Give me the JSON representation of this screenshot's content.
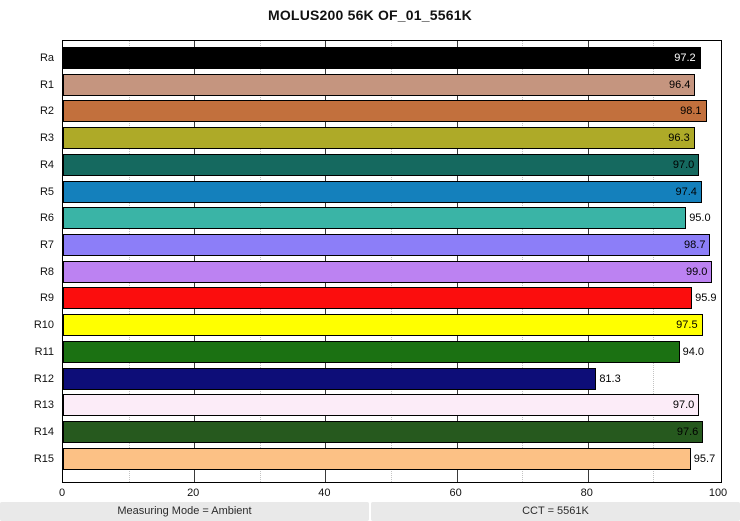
{
  "title": "MOLUS200 56K OF_01_5561K",
  "footer": {
    "left": "Measuring Mode = Ambient",
    "right": "CCT = 5561K"
  },
  "chart_data": {
    "type": "bar",
    "orientation": "horizontal",
    "title": "MOLUS200 56K OF_01_5561K",
    "categories": [
      "Ra",
      "R1",
      "R2",
      "R3",
      "R4",
      "R5",
      "R6",
      "R7",
      "R8",
      "R9",
      "R10",
      "R11",
      "R12",
      "R13",
      "R14",
      "R15"
    ],
    "values": [
      97.2,
      96.4,
      98.1,
      96.3,
      97.0,
      97.4,
      95.0,
      98.7,
      99.0,
      95.9,
      97.5,
      94.0,
      81.3,
      97.0,
      97.6,
      95.7
    ],
    "bar_colors": [
      "#000000",
      "#c5957f",
      "#c2703d",
      "#aeaa28",
      "#15695f",
      "#1480bc",
      "#3ab4a6",
      "#8c7ef8",
      "#bc82f2",
      "#fb0d0d",
      "#ffff00",
      "#1b7112",
      "#0d0d78",
      "#fcecf8",
      "#26591e",
      "#fcc185"
    ],
    "value_text_colors_inside": [
      "#ffffff",
      "#000000",
      "#000000",
      "#000000",
      "#000000",
      "#000000",
      "#000000",
      "#000000",
      "#000000",
      "#000000",
      "#000000",
      "#000000",
      "#000000",
      "#000000",
      "#000000",
      "#000000"
    ],
    "xlim": [
      0,
      100
    ],
    "x_ticks": [
      0,
      20,
      40,
      60,
      80,
      100
    ],
    "grid": {
      "minor_every": 10,
      "major_every": 20,
      "legend": "none"
    },
    "value_label_inside_threshold": 96,
    "bar_edge_color": "#000000"
  }
}
